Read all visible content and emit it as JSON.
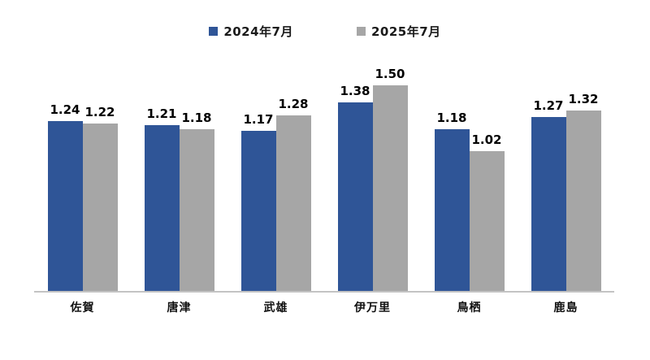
{
  "chart_data": {
    "type": "bar",
    "categories": [
      "佐賀",
      "唐津",
      "武雄",
      "伊万里",
      "鳥栖",
      "鹿島"
    ],
    "series": [
      {
        "name": "2024年7月",
        "color": "#2F5597",
        "values": [
          1.24,
          1.21,
          1.17,
          1.38,
          1.18,
          1.27
        ]
      },
      {
        "name": "2025年7月",
        "color": "#A6A6A6",
        "values": [
          1.22,
          1.18,
          1.28,
          1.5,
          1.02,
          1.32
        ]
      }
    ],
    "title": "",
    "xlabel": "",
    "ylabel": "",
    "ylim": [
      0,
      1.6
    ],
    "value_label_decimals": 2,
    "grid": false,
    "legend_position": "top",
    "axis_line_color": "#C3C3C3",
    "value_label_color": "#000000",
    "background_color": "#FFFFFF"
  }
}
